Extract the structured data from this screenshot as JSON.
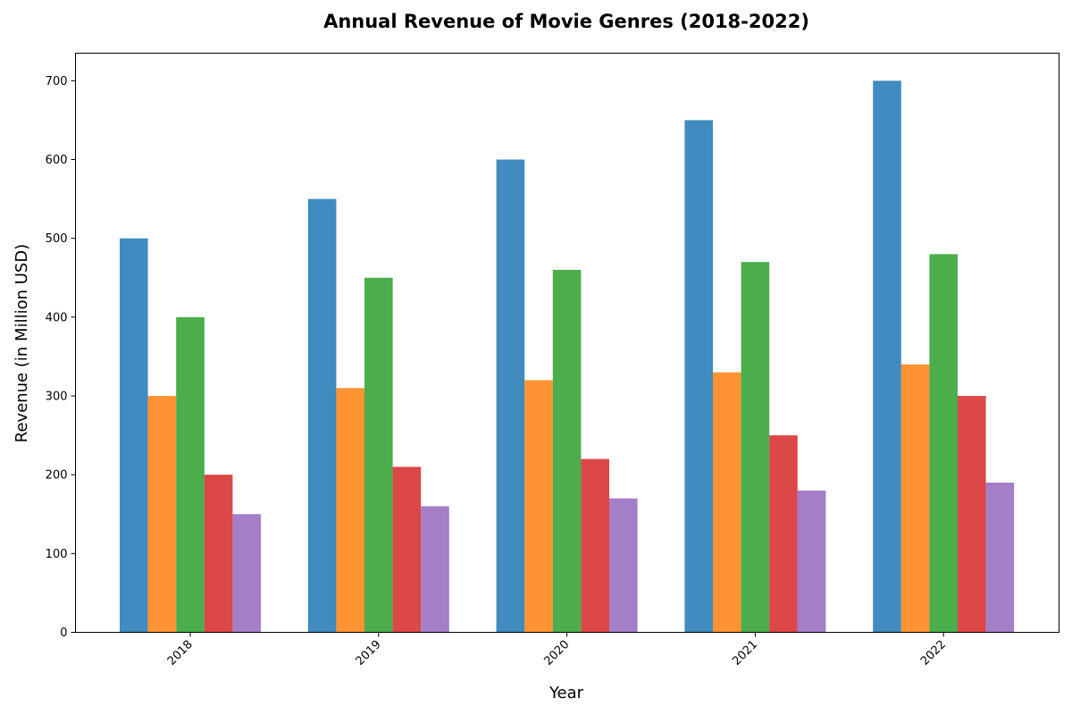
{
  "chart_data": {
    "type": "bar",
    "title": "Annual Revenue of Movie Genres (2018-2022)",
    "xlabel": "Year",
    "ylabel": "Revenue (in Million USD)",
    "categories": [
      "2018",
      "2019",
      "2020",
      "2021",
      "2022"
    ],
    "ylim": [
      0,
      735
    ],
    "yticks": [
      0,
      100,
      200,
      300,
      400,
      500,
      600,
      700
    ],
    "grid": false,
    "legend": "none",
    "series": [
      {
        "color": "#1f77b4",
        "values": [
          500,
          550,
          600,
          650,
          700
        ]
      },
      {
        "color": "#ff7f0e",
        "values": [
          300,
          310,
          320,
          330,
          340
        ]
      },
      {
        "color": "#2ca02c",
        "values": [
          400,
          450,
          460,
          470,
          480
        ]
      },
      {
        "color": "#d62728",
        "values": [
          200,
          210,
          220,
          250,
          300
        ]
      },
      {
        "color": "#9467bd",
        "values": [
          150,
          160,
          170,
          180,
          190
        ]
      }
    ]
  }
}
